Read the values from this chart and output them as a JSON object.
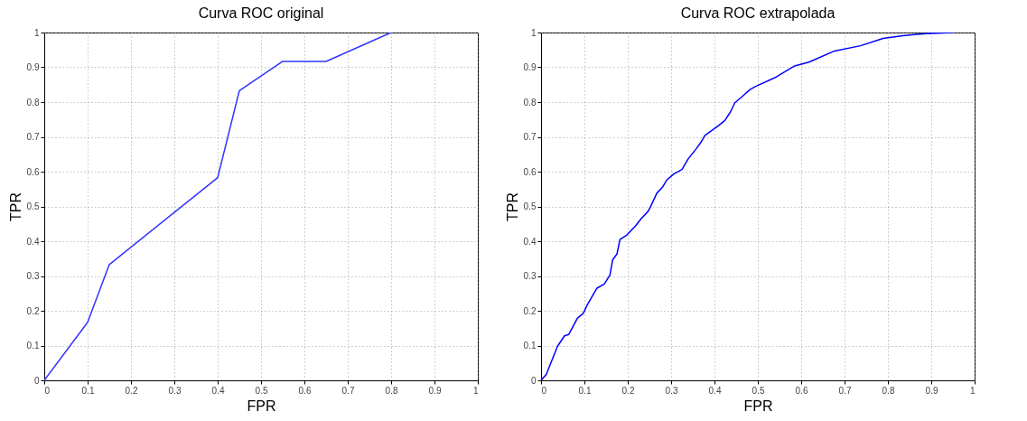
{
  "chart_data": [
    {
      "type": "line",
      "title": "Curva ROC original",
      "xlabel": "FPR",
      "ylabel": "TPR",
      "xlim": [
        0,
        1
      ],
      "ylim": [
        0,
        1
      ],
      "xticks": [
        0,
        0.1,
        0.2,
        0.3,
        0.4,
        0.5,
        0.6,
        0.7,
        0.8,
        0.9,
        1
      ],
      "yticks": [
        0,
        0.1,
        0.2,
        0.3,
        0.4,
        0.5,
        0.6,
        0.7,
        0.8,
        0.9,
        1
      ],
      "grid": true,
      "line_style": "solid",
      "series": [
        {
          "color": "#3333ff",
          "x": [
            0,
            0.1,
            0.15,
            0.4,
            0.45,
            0.55,
            0.65,
            0.8
          ],
          "values": [
            0,
            0.167,
            0.333,
            0.583,
            0.833,
            0.917,
            0.917,
            1
          ]
        }
      ]
    },
    {
      "type": "line",
      "title": "Curva ROC extrapolada",
      "xlabel": "FPR",
      "ylabel": "TPR",
      "xlim": [
        0,
        1
      ],
      "ylim": [
        0,
        1
      ],
      "xticks": [
        0,
        0.1,
        0.2,
        0.3,
        0.4,
        0.5,
        0.6,
        0.7,
        0.8,
        0.9,
        1
      ],
      "yticks": [
        0,
        0.1,
        0.2,
        0.3,
        0.4,
        0.5,
        0.6,
        0.7,
        0.8,
        0.9,
        1
      ],
      "grid": true,
      "line_style": "solid",
      "series": [
        {
          "color": "#0000ff",
          "x": [
            0,
            0.012,
            0.038,
            0.054,
            0.064,
            0.084,
            0.097,
            0.107,
            0.123,
            0.129,
            0.146,
            0.159,
            0.165,
            0.175,
            0.182,
            0.198,
            0.218,
            0.231,
            0.247,
            0.254,
            0.267,
            0.28,
            0.29,
            0.306,
            0.325,
            0.339,
            0.358,
            0.368,
            0.378,
            0.397,
            0.411,
            0.424,
            0.437,
            0.447,
            0.463,
            0.482,
            0.495,
            0.539,
            0.585,
            0.618,
            0.677,
            0.737,
            0.789,
            0.835,
            0.888,
            0.951
          ],
          "values": [
            0,
            0.017,
            0.098,
            0.128,
            0.132,
            0.179,
            0.192,
            0.218,
            0.252,
            0.265,
            0.277,
            0.303,
            0.346,
            0.363,
            0.405,
            0.418,
            0.444,
            0.465,
            0.486,
            0.503,
            0.538,
            0.555,
            0.576,
            0.593,
            0.606,
            0.636,
            0.666,
            0.683,
            0.704,
            0.721,
            0.734,
            0.747,
            0.772,
            0.798,
            0.815,
            0.836,
            0.845,
            0.87,
            0.904,
            0.915,
            0.947,
            0.962,
            0.983,
            0.991,
            0.997,
            1
          ]
        }
      ]
    }
  ]
}
